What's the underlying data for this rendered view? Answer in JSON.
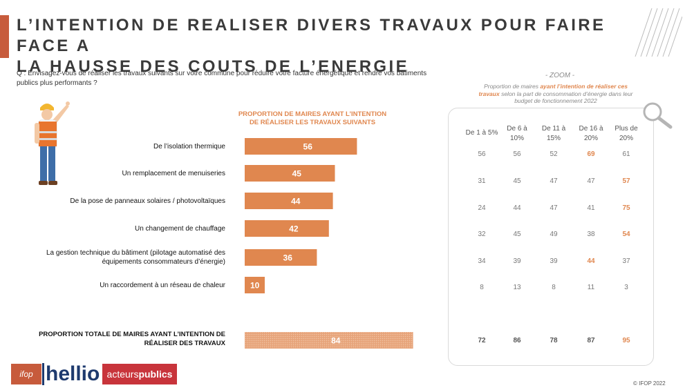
{
  "title_line1": "L’INTENTION DE REALISER DIVERS TRAVAUX POUR FAIRE FACE A",
  "title_line2": "LA HAUSSE DES COUTS DE L’ENERGIE",
  "question": "Q : Envisagez-vous de réaliser les travaux suivants sur votre commune pour réduire votre facture énergétique et rendre vos bâtiments publics plus performants ?",
  "chart_data": {
    "type": "bar",
    "title_line1": "PROPORTION DE MAIRES AYANT L’INTENTION",
    "title_line2": "DE RÉALISER LES TRAVAUX SUIVANTS",
    "categories": [
      "De l’isolation thermique",
      "Un remplacement de menuiseries",
      "De la pose de panneaux solaires / photovoltaïques",
      "Un changement de chauffage",
      "La gestion technique du bâtiment (pilotage automatisé des équipements consommateurs d’énergie)",
      "Un raccordement à un réseau de chaleur"
    ],
    "values": [
      56,
      45,
      44,
      42,
      36,
      10
    ],
    "total_label": "PROPORTION TOTALE DE MAIRES AYANT L’INTENTION DE RÉALISER DES TRAVAUX",
    "total_value": 84,
    "bar_color": "#e0874f",
    "total_color": "#e7a47a",
    "xlim": [
      0,
      100
    ]
  },
  "zoom": {
    "title": "- ZOOM -",
    "subtitle_a": "Proportion de maires ",
    "subtitle_highlight": "ayant l’intention de réaliser ces travaux",
    "subtitle_b": " selon la part de consommation d’énergie dans leur budget de fonctionnement 2022",
    "columns": [
      [
        "De 1 à 5%",
        ""
      ],
      [
        "De 6 à",
        "10%"
      ],
      [
        "De 11 à",
        "15%"
      ],
      [
        "De 16 à",
        "20%"
      ],
      [
        "Plus de",
        "20%"
      ]
    ],
    "rows": [
      [
        56,
        56,
        52,
        69,
        61
      ],
      [
        31,
        45,
        47,
        47,
        57
      ],
      [
        24,
        44,
        47,
        41,
        75
      ],
      [
        32,
        45,
        49,
        38,
        54
      ],
      [
        34,
        39,
        39,
        44,
        37
      ],
      [
        8,
        13,
        8,
        11,
        3
      ]
    ],
    "highlight_col": [
      3,
      4,
      4,
      4,
      3,
      -1
    ],
    "total_row": [
      72,
      86,
      78,
      87,
      95
    ],
    "total_highlight_col": 4,
    "highlight_color": "#e0874f"
  },
  "logos": {
    "ifop": "ifop",
    "hellio": "hellio",
    "acteurs_a": "acteurs",
    "acteurs_b": "publics"
  },
  "copyright": "© IFOP 2022"
}
